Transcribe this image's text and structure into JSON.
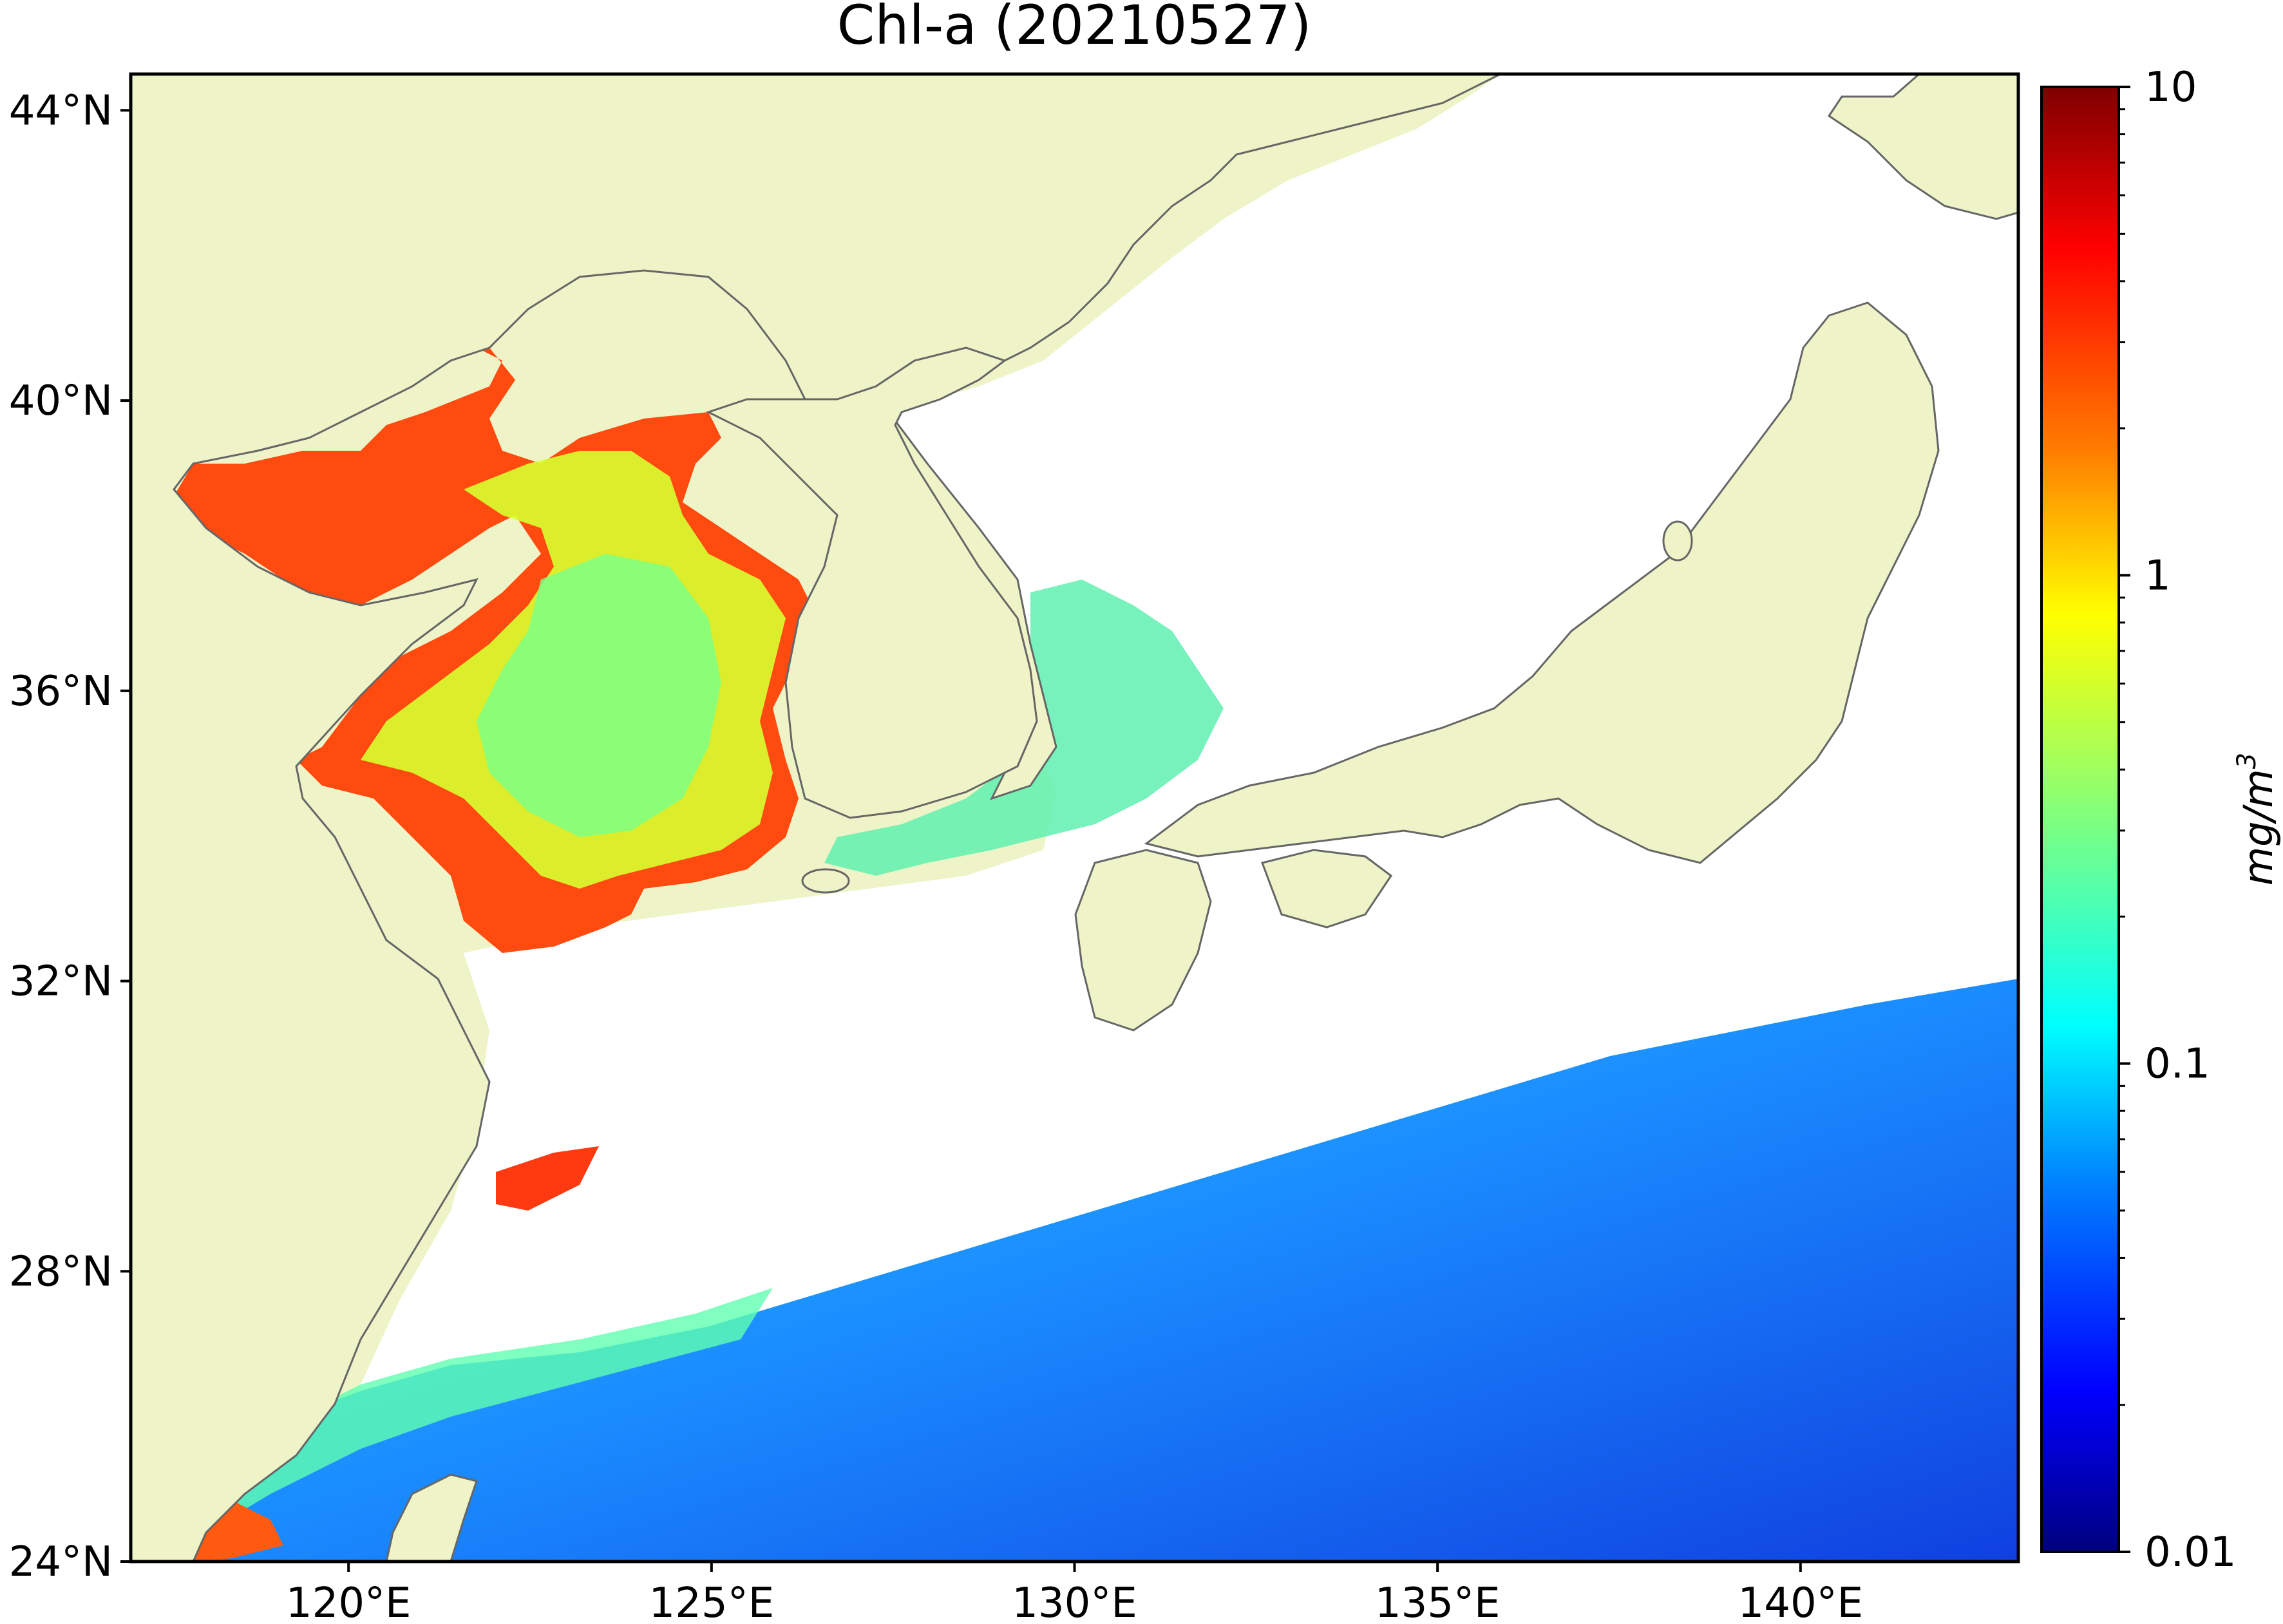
{
  "map": {
    "title": "Chl-a (20210527)",
    "extent": {
      "lon": [
        117,
        143
      ],
      "lat": [
        24,
        44.5
      ]
    },
    "lat_labels": [
      {
        "value": 44,
        "label": "44°N"
      },
      {
        "value": 40,
        "label": "40°N"
      },
      {
        "value": 36,
        "label": "36°N"
      },
      {
        "value": 32,
        "label": "32°N"
      },
      {
        "value": 28,
        "label": "28°N"
      },
      {
        "value": 24,
        "label": "24°N"
      }
    ],
    "lon_labels": [
      {
        "value": 120,
        "label": "120°E"
      },
      {
        "value": 125,
        "label": "125°E"
      },
      {
        "value": 130,
        "label": "130°E"
      },
      {
        "value": 135,
        "label": "135°E"
      },
      {
        "value": 140,
        "label": "140°E"
      }
    ],
    "colors": {
      "land": "#eff4c8",
      "coastline": "#666666",
      "no_data": "#ffffff",
      "frame": "#000000"
    }
  },
  "colorbar": {
    "unit_base": "mg/m",
    "unit_exp": "3",
    "scale": "log",
    "range": [
      0.01,
      10
    ],
    "colormap": "jet",
    "ticks": [
      {
        "value": 10,
        "label": "10"
      },
      {
        "value": 1,
        "label": "1"
      },
      {
        "value": 0.1,
        "label": "0.1"
      },
      {
        "value": 0.01,
        "label": "0.01"
      }
    ],
    "stops": [
      "#00007f",
      "#0000ff",
      "#007fff",
      "#00ffff",
      "#7fff7f",
      "#ffff00",
      "#ff7f00",
      "#ff0000",
      "#7f0000"
    ]
  }
}
